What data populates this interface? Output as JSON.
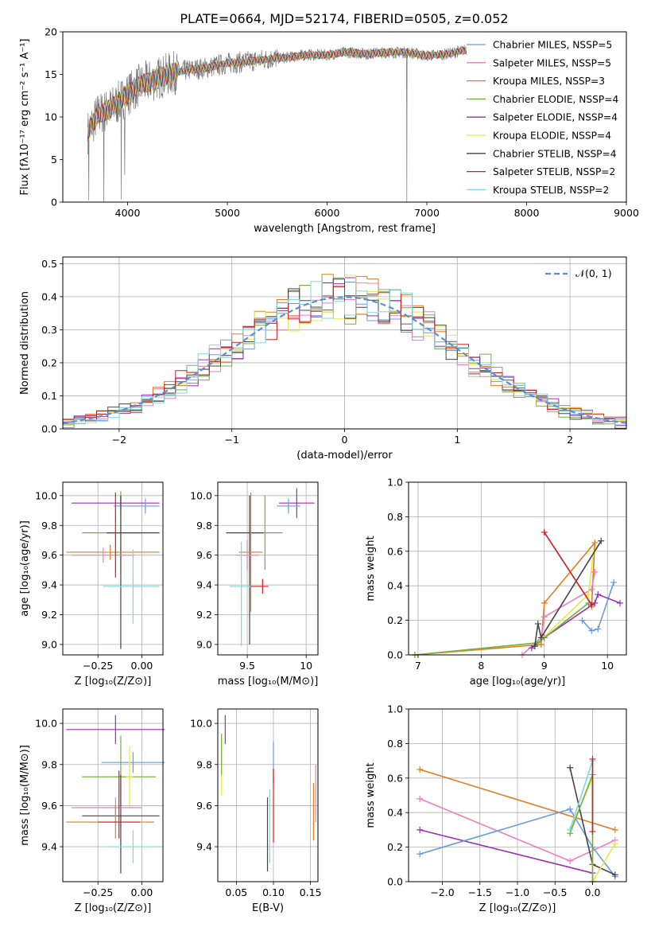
{
  "figure_title": "PLATE=0664, MJD=52174, FIBERID=0505, z=0.052",
  "colors": {
    "Chabrier MILES": "#6a9be0",
    "Salpeter MILES": "#ea7fbe",
    "Kroupa MILES": "#e07c22",
    "Chabrier ELODIE": "#72b044",
    "Salpeter ELODIE": "#9a2fb5",
    "Kroupa ELODIE": "#e5e84a",
    "Chabrier STELIB": "#444444",
    "Salpeter STELIB": "#cc2020",
    "Kroupa STELIB": "#7fd6dd",
    "spectrum_data": "#7a7a7a",
    "normal_curve": "#5b8ed6",
    "grid": "#b0b0b0"
  },
  "legend_labels": [
    "Chabrier MILES, N_SSP=5",
    "Salpeter MILES, N_SSP=5",
    "Kroupa MILES, N_SSP=3",
    "Chabrier ELODIE, N_SSP=4",
    "Salpeter ELODIE, N_SSP=4",
    "Kroupa ELODIE, N_SSP=4",
    "Chabrier STELIB, N_SSP=4",
    "Salpeter STELIB, N_SSP=2",
    "Kroupa STELIB, N_SSP=2"
  ],
  "chart_data": [
    {
      "id": "spectrum",
      "type": "line",
      "xlabel": "wavelength [Angstrom, rest frame]",
      "ylabel": "Flux [fλ10⁻¹⁷ erg cm⁻² s⁻¹ A⁻¹]",
      "xlim": [
        3350,
        9000
      ],
      "ylim": [
        0,
        20
      ],
      "xticks": [
        4000,
        5000,
        6000,
        7000,
        8000,
        9000
      ],
      "yticks": [
        0,
        5,
        10,
        15,
        20
      ],
      "grid": false,
      "legend_position": "right",
      "continuum": {
        "x": [
          3600,
          3700,
          3800,
          3900,
          4000,
          4100,
          4200,
          4300,
          4400,
          4600,
          4800,
          5000,
          5200,
          5400,
          5600,
          5800,
          6000,
          6200,
          6400,
          6600,
          6800,
          7000,
          7200,
          7400
        ],
        "y": [
          8.2,
          10.3,
          10.8,
          11.6,
          12.7,
          13.6,
          14.1,
          14.5,
          15.0,
          15.5,
          15.8,
          16.3,
          16.5,
          16.8,
          17.0,
          17.3,
          17.3,
          17.6,
          17.4,
          17.6,
          17.6,
          17.2,
          17.4,
          17.9
        ]
      },
      "dips": [
        {
          "x": 3610,
          "y": 0.2
        },
        {
          "x": 3760,
          "y": 0.0
        },
        {
          "x": 3935,
          "y": 0.3
        },
        {
          "x": 3970,
          "y": 3.2
        },
        {
          "x": 6800,
          "y": 0.0
        },
        {
          "x": 7400,
          "y": 0.0
        }
      ]
    },
    {
      "id": "residuals",
      "type": "histogram",
      "xlabel": "(data-model)/error",
      "ylabel": "Normed distribution",
      "xlim": [
        -2.5,
        2.5
      ],
      "ylim": [
        0,
        0.52
      ],
      "xticks": [
        -2,
        -1,
        0,
        1,
        2
      ],
      "yticks": [
        0.0,
        0.1,
        0.2,
        0.3,
        0.4,
        0.5
      ],
      "grid": true,
      "legend_label": "𝒩(0, 1)",
      "legend_position": "top-right"
    },
    {
      "id": "age_vs_Z",
      "type": "scatter",
      "xlabel": "Z [log₁₀(Z/Z⊙)]",
      "ylabel": "age  [log₁₀(age/yr)]",
      "xlim": [
        -0.45,
        0.12
      ],
      "ylim": [
        8.93,
        10.09
      ],
      "xticks": [
        -0.25,
        0.0
      ],
      "xtick_labels": [
        "−0.25",
        "0.00"
      ],
      "yticks": [
        9.0,
        9.2,
        9.4,
        9.6,
        9.8,
        10.0
      ],
      "grid": true,
      "points": [
        {
          "model": "Salpeter ELODIE",
          "x": -0.12,
          "xerr": [
            0.28,
            0.22
          ],
          "y": 9.95,
          "yerr": [
            0.05,
            0.05
          ]
        },
        {
          "model": "Chabrier MILES",
          "x": 0.02,
          "xerr": [
            0.18,
            0.08
          ],
          "y": 9.93,
          "yerr": [
            0.05,
            0.05
          ]
        },
        {
          "model": "Chabrier ELODIE",
          "x": -0.12,
          "xerr": [
            0.22,
            0.12
          ],
          "y": 9.75,
          "yerr": [
            0.28,
            0.28
          ]
        },
        {
          "model": "Chabrier STELIB",
          "x": -0.12,
          "xerr": [
            0.08,
            0.22
          ],
          "y": 9.75,
          "yerr": [
            0.78,
            0.25
          ]
        },
        {
          "model": "Kroupa MILES",
          "x": -0.18,
          "xerr": [
            0.25,
            0.28
          ],
          "y": 9.62,
          "yerr": [
            0.05,
            0.05
          ]
        },
        {
          "model": "Salpeter MILES",
          "x": -0.22,
          "xerr": [
            0.18,
            0.18
          ],
          "y": 9.6,
          "yerr": [
            0.05,
            0.05
          ]
        },
        {
          "model": "Kroupa STELIB",
          "x": -0.05,
          "xerr": [
            0.17,
            0.15
          ],
          "y": 9.39,
          "yerr": [
            0.25,
            0.25
          ]
        },
        {
          "model": "Salpeter STELIB",
          "x": -0.15,
          "xerr": [
            0.02,
            0.02
          ],
          "y": 9.75,
          "yerr": [
            0.3,
            0.27
          ]
        }
      ]
    },
    {
      "id": "age_vs_mass",
      "type": "scatter",
      "xlabel": "mass [log₁₀(M/M⊙)]",
      "ylabel": "",
      "xlim": [
        9.25,
        10.1
      ],
      "ylim": [
        8.93,
        10.09
      ],
      "xticks": [
        9.5,
        10.0
      ],
      "yticks": [
        9.0,
        9.2,
        9.4,
        9.6,
        9.8,
        10.0
      ],
      "grid": true,
      "points": [
        {
          "model": "Salpeter ELODIE",
          "x": 9.92,
          "xerr": [
            0.15,
            0.15
          ],
          "y": 9.95,
          "yerr": [
            0.1,
            0.1
          ]
        },
        {
          "model": "Chabrier MILES",
          "x": 9.85,
          "xerr": [
            0.1,
            0.1
          ],
          "y": 9.93,
          "yerr": [
            0.05,
            0.05
          ]
        },
        {
          "model": "Chabrier ELODIE",
          "x": 9.65,
          "xerr": [
            0.1,
            0.15
          ],
          "y": 9.75,
          "yerr": [
            0.25,
            0.25
          ]
        },
        {
          "model": "Chabrier STELIB",
          "x": 9.52,
          "xerr": [
            0.2,
            0.12
          ],
          "y": 9.75,
          "yerr": [
            0.75,
            0.25
          ]
        },
        {
          "model": "Kroupa MILES",
          "x": 9.53,
          "xerr": [
            0.1,
            0.1
          ],
          "y": 9.62,
          "yerr": [
            0.4,
            0.4
          ]
        },
        {
          "model": "Salpeter MILES",
          "x": 9.5,
          "xerr": [
            0.1,
            0.1
          ],
          "y": 9.6,
          "yerr": [
            0.1,
            0.1
          ]
        },
        {
          "model": "Kroupa STELIB",
          "x": 9.45,
          "xerr": [
            0.1,
            0.1
          ],
          "y": 9.39,
          "yerr": [
            0.4,
            0.3
          ]
        },
        {
          "model": "Salpeter STELIB",
          "x": 9.63,
          "xerr": [
            0.1,
            0.05
          ],
          "y": 9.39,
          "yerr": [
            0.05,
            0.05
          ]
        }
      ]
    },
    {
      "id": "weight_vs_age",
      "type": "line",
      "xlabel": "age  [log₁₀(age/yr)]",
      "ylabel": "mass weight",
      "xlim": [
        6.85,
        10.3
      ],
      "ylim": [
        0,
        1
      ],
      "xticks": [
        7,
        8,
        9,
        10
      ],
      "yticks": [
        0.0,
        0.2,
        0.4,
        0.6,
        0.8,
        1.0
      ],
      "grid": true,
      "series": [
        {
          "model": "Kroupa MILES",
          "x": [
            6.95,
            8.95,
            9.0,
            9.8,
            9.75
          ],
          "y": [
            0.0,
            0.06,
            0.3,
            0.65,
            0.28
          ]
        },
        {
          "model": "Salpeter MILES",
          "x": [
            8.65,
            8.95,
            9.0,
            9.75,
            9.8
          ],
          "y": [
            0.0,
            0.1,
            0.22,
            0.38,
            0.48
          ]
        },
        {
          "model": "Chabrier MILES",
          "x": [
            9.6,
            9.75,
            9.85,
            10.1
          ],
          "y": [
            0.2,
            0.14,
            0.15,
            0.42
          ]
        },
        {
          "model": "Salpeter ELODIE",
          "x": [
            8.8,
            9.0,
            9.8,
            9.85,
            10.2
          ],
          "y": [
            0.04,
            0.1,
            0.3,
            0.35,
            0.3
          ]
        },
        {
          "model": "Kroupa ELODIE",
          "x": [
            6.95,
            8.9,
            9.7,
            9.78
          ],
          "y": [
            0.0,
            0.07,
            0.35,
            0.6
          ]
        },
        {
          "model": "Chabrier ELODIE",
          "x": [
            6.95,
            8.9,
            9.7
          ],
          "y": [
            0.0,
            0.07,
            0.3
          ]
        },
        {
          "model": "Chabrier STELIB",
          "x": [
            8.85,
            8.9,
            8.95,
            9.9
          ],
          "y": [
            0.05,
            0.18,
            0.1,
            0.66
          ]
        },
        {
          "model": "Kroupa STELIB",
          "x": [
            9.0,
            9.75
          ],
          "y": [
            0.71,
            0.29
          ]
        },
        {
          "model": "Salpeter STELIB",
          "x": [
            9.0,
            9.75
          ],
          "y": [
            0.71,
            0.29
          ]
        }
      ]
    },
    {
      "id": "mass_vs_Z",
      "type": "scatter",
      "xlabel": "Z [log₁₀(Z/Z⊙)]",
      "ylabel": "mass [log₁₀(M/M⊙)]",
      "xlim": [
        -0.45,
        0.12
      ],
      "ylim": [
        9.23,
        10.07
      ],
      "xticks": [
        -0.25,
        0.0
      ],
      "xtick_labels": [
        "−0.25",
        "0.00"
      ],
      "yticks": [
        9.4,
        9.6,
        9.8,
        10.0
      ],
      "grid": true,
      "points": [
        {
          "model": "Salpeter ELODIE",
          "x": -0.15,
          "xerr": [
            0.28,
            0.28
          ],
          "y": 9.97,
          "yerr": [
            0.07,
            0.07
          ]
        },
        {
          "model": "Chabrier MILES",
          "x": -0.05,
          "xerr": [
            0.18,
            0.18
          ],
          "y": 9.81,
          "yerr": [
            0.05,
            0.05
          ]
        },
        {
          "model": "Chabrier ELODIE",
          "x": -0.12,
          "xerr": [
            0.22,
            0.2
          ],
          "y": 9.74,
          "yerr": [
            0.15,
            0.2
          ]
        },
        {
          "model": "Kroupa ELODIE",
          "x": -0.07,
          "xerr": [
            0.02,
            0.02
          ],
          "y": 9.74,
          "yerr": [
            0.15,
            0.15
          ]
        },
        {
          "model": "Chabrier STELIB",
          "x": -0.12,
          "xerr": [
            0.22,
            0.22
          ],
          "y": 9.55,
          "yerr": [
            0.28,
            0.2
          ]
        },
        {
          "model": "Salpeter MILES",
          "x": -0.15,
          "xerr": [
            0.25,
            0.15
          ],
          "y": 9.59,
          "yerr": [
            0.05,
            0.05
          ]
        },
        {
          "model": "Kroupa MILES",
          "x": -0.15,
          "xerr": [
            0.28,
            0.22
          ],
          "y": 9.52,
          "yerr": [
            0.08,
            0.08
          ]
        },
        {
          "model": "Salpeter STELIB",
          "x": -0.13,
          "xerr": [
            0.12,
            0.12
          ],
          "y": 9.52,
          "yerr": [
            0.08,
            0.25
          ]
        },
        {
          "model": "Kroupa STELIB",
          "x": -0.05,
          "xerr": [
            0.15,
            0.15
          ],
          "y": 9.4,
          "yerr": [
            0.08,
            0.08
          ]
        }
      ]
    },
    {
      "id": "mass_vs_ebv",
      "type": "scatter",
      "xlabel": "E(B-V)",
      "ylabel": "",
      "xlim": [
        0.025,
        0.16
      ],
      "ylim": [
        9.23,
        10.07
      ],
      "xticks": [
        0.05,
        0.1,
        0.15
      ],
      "xtick_labels": [
        "0.05",
        "0.10",
        "0.15"
      ],
      "yticks": [
        9.4,
        9.6,
        9.8,
        10.0
      ],
      "grid": true,
      "points": [
        {
          "model": "Kroupa ELODIE",
          "x": 0.03,
          "xerr": [
            0,
            0
          ],
          "y": 9.8,
          "yerr": [
            0.15,
            0.15
          ]
        },
        {
          "model": "Salpeter ELODIE",
          "x": 0.035,
          "xerr": [
            0,
            0
          ],
          "y": 9.97,
          "yerr": [
            0.07,
            0.07
          ]
        },
        {
          "model": "Chabrier ELODIE",
          "x": 0.03,
          "xerr": [
            0,
            0
          ],
          "y": 9.85,
          "yerr": [
            0.1,
            0.1
          ]
        },
        {
          "model": "Chabrier MILES",
          "x": 0.1,
          "xerr": [
            0,
            0
          ],
          "y": 9.81,
          "yerr": [
            0.1,
            0.1
          ]
        },
        {
          "model": "Salpeter STELIB",
          "x": 0.1,
          "xerr": [
            0,
            0
          ],
          "y": 9.6,
          "yerr": [
            0.18,
            0.18
          ]
        },
        {
          "model": "Chabrier STELIB",
          "x": 0.092,
          "xerr": [
            0,
            0
          ],
          "y": 9.46,
          "yerr": [
            0.18,
            0.18
          ]
        },
        {
          "model": "Kroupa STELIB",
          "x": 0.095,
          "xerr": [
            0,
            0
          ],
          "y": 9.5,
          "yerr": [
            0.18,
            0.18
          ]
        },
        {
          "model": "Kroupa MILES",
          "x": 0.154,
          "xerr": [
            0,
            0
          ],
          "y": 9.57,
          "yerr": [
            0.14,
            0.14
          ]
        },
        {
          "model": "Salpeter MILES",
          "x": 0.157,
          "xerr": [
            0,
            0
          ],
          "y": 9.66,
          "yerr": [
            0.14,
            0.14
          ]
        }
      ]
    },
    {
      "id": "weight_vs_Z",
      "type": "line",
      "xlabel": "Z [log₁₀(Z/Z⊙)]",
      "ylabel": "mass weight",
      "xlim": [
        -2.45,
        0.45
      ],
      "ylim": [
        0,
        1
      ],
      "xticks": [
        -2.0,
        -1.5,
        -1.0,
        -0.5,
        0.0
      ],
      "xtick_labels": [
        "−2.0",
        "−1.5",
        "−1.0",
        "−0.5",
        "0.0"
      ],
      "yticks": [
        0.0,
        0.2,
        0.4,
        0.6,
        0.8,
        1.0
      ],
      "grid": true,
      "series": [
        {
          "model": "Kroupa MILES",
          "x": [
            -2.3,
            0.3
          ],
          "y": [
            0.65,
            0.3
          ]
        },
        {
          "model": "Salpeter MILES",
          "x": [
            -2.3,
            -0.3,
            0.3
          ],
          "y": [
            0.48,
            0.12,
            0.24
          ]
        },
        {
          "model": "Salpeter ELODIE",
          "x": [
            -2.3,
            0.0
          ],
          "y": [
            0.3,
            0.05
          ]
        },
        {
          "model": "Chabrier MILES",
          "x": [
            -2.3,
            -0.3,
            0.0,
            0.3
          ],
          "y": [
            0.16,
            0.42,
            0.2,
            0.03
          ]
        },
        {
          "model": "Chabrier STELIB",
          "x": [
            -0.3,
            0.0,
            0.3
          ],
          "y": [
            0.66,
            0.1,
            0.04
          ]
        },
        {
          "model": "Kroupa ELODIE",
          "x": [
            -0.3,
            0.0,
            0.0,
            0.3
          ],
          "y": [
            0.3,
            0.6,
            0.0,
            0.22
          ]
        },
        {
          "model": "Chabrier ELODIE",
          "x": [
            -0.3,
            0.0,
            0.0
          ],
          "y": [
            0.28,
            0.62,
            0.0
          ]
        },
        {
          "model": "Kroupa STELIB",
          "x": [
            -0.3,
            0.0,
            0.0
          ],
          "y": [
            0.3,
            0.7,
            0.29
          ]
        },
        {
          "model": "Salpeter STELIB",
          "x": [
            0.0,
            0.0
          ],
          "y": [
            0.29,
            0.71
          ]
        }
      ]
    }
  ]
}
